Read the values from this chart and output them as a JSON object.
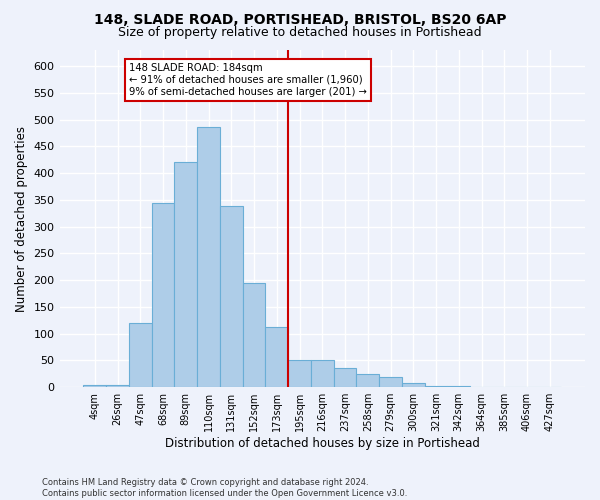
{
  "title": "148, SLADE ROAD, PORTISHEAD, BRISTOL, BS20 6AP",
  "subtitle": "Size of property relative to detached houses in Portishead",
  "xlabel": "Distribution of detached houses by size in Portishead",
  "ylabel": "Number of detached properties",
  "categories": [
    "4sqm",
    "26sqm",
    "47sqm",
    "68sqm",
    "89sqm",
    "110sqm",
    "131sqm",
    "152sqm",
    "173sqm",
    "195sqm",
    "216sqm",
    "237sqm",
    "258sqm",
    "279sqm",
    "300sqm",
    "321sqm",
    "342sqm",
    "364sqm",
    "385sqm",
    "406sqm",
    "427sqm"
  ],
  "values": [
    5,
    5,
    120,
    345,
    420,
    487,
    338,
    195,
    113,
    50,
    50,
    36,
    25,
    20,
    8,
    3,
    2,
    1,
    1,
    1,
    1
  ],
  "bar_color": "#aecde8",
  "bar_edge_color": "#6aaed6",
  "vline_x_idx": 8.5,
  "vline_color": "#cc0000",
  "annotation_text": "148 SLADE ROAD: 184sqm\n← 91% of detached houses are smaller (1,960)\n9% of semi-detached houses are larger (201) →",
  "annotation_box_color": "#ffffff",
  "annotation_box_edge_color": "#cc0000",
  "ylim": [
    0,
    630
  ],
  "yticks": [
    0,
    50,
    100,
    150,
    200,
    250,
    300,
    350,
    400,
    450,
    500,
    550,
    600
  ],
  "bg_color": "#eef2fb",
  "grid_color": "#ffffff",
  "footer_line1": "Contains HM Land Registry data © Crown copyright and database right 2024.",
  "footer_line2": "Contains public sector information licensed under the Open Government Licence v3.0."
}
